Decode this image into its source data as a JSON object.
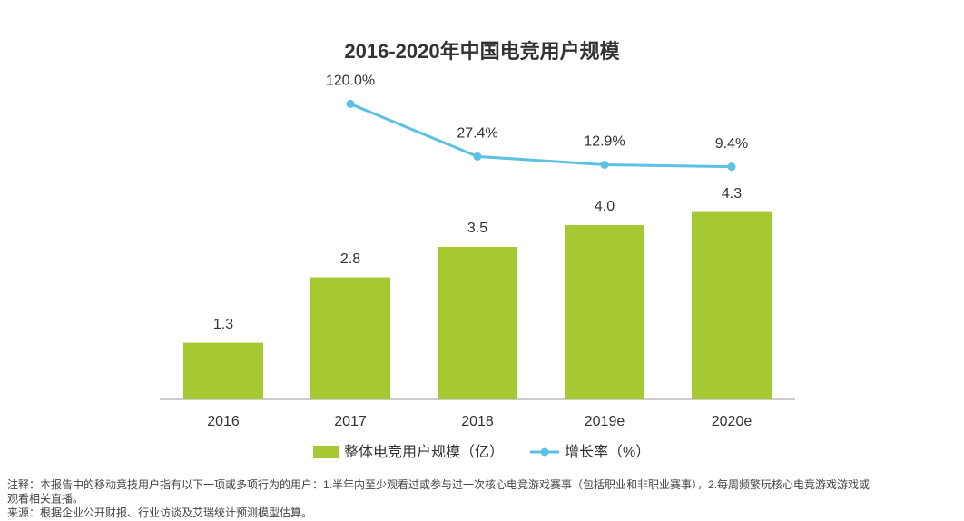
{
  "chart_data": {
    "type": "bar_line",
    "title": "2016-2020年中国电竞用户规模",
    "categories": [
      "2016",
      "2017",
      "2018",
      "2019e",
      "2020e"
    ],
    "series": [
      {
        "name": "整体电竞用户规模（亿）",
        "type": "bar",
        "color": "#a6c832",
        "values": [
          1.3,
          2.8,
          3.5,
          4.0,
          4.3
        ],
        "value_labels": [
          "1.3",
          "2.8",
          "3.5",
          "4.0",
          "4.3"
        ]
      },
      {
        "name": "增长率（%）",
        "type": "line",
        "axis": "y2",
        "color": "#5bc2e3",
        "values": [
          null,
          120.0,
          27.4,
          12.9,
          9.4
        ],
        "value_labels": [
          null,
          "120.0%",
          "27.4%",
          "12.9%",
          "9.4%"
        ]
      }
    ],
    "ylim": [
      0,
      9
    ],
    "y2lim": [
      -400,
      290
    ],
    "legend": "bottom",
    "notes": [
      "注释：本报告中的移动竞技用户指有以下一项或多项行为的用户：1.半年内至少观看过或参与过一次核心电竞游戏赛事（包括职业和非职业赛事），2.每周频繁玩核心电竞游戏游戏或",
      "观看相关直播。",
      "来源：根据企业公开财报、行业访谈及艾瑞统计预测模型估算。"
    ]
  }
}
